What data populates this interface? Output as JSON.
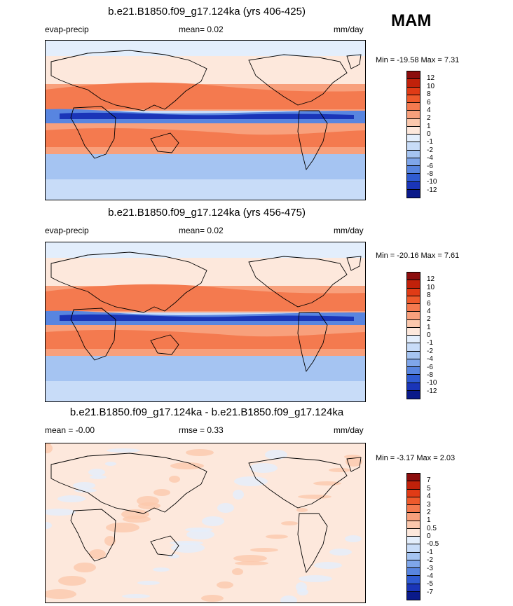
{
  "season": "MAM",
  "panels": [
    {
      "title": "b.e21.B1850.f09_g17.124ka (yrs 406-425)",
      "left_label": "evap-precip",
      "center_label": "mean=  0.02",
      "units": "mm/day",
      "minmax": "Min = -19.58 Max =  7.31",
      "levels": [
        "12",
        "10",
        "8",
        "6",
        "4",
        "2",
        "1",
        "0",
        "-1",
        "-2",
        "-4",
        "-6",
        "-8",
        "-10",
        "-12"
      ],
      "colors": [
        "#8c0d0d",
        "#c1210a",
        "#e03b16",
        "#ee5a2c",
        "#f47a4f",
        "#f8a07c",
        "#fbc8ad",
        "#fde8dc",
        "#e3eefc",
        "#c8dcf8",
        "#a5c4f2",
        "#7fa6ea",
        "#5885e0",
        "#2f5bd2",
        "#1a35b8",
        "#0a1a8a"
      ],
      "kind": "mean"
    },
    {
      "title": "b.e21.B1850.f09_g17.124ka (yrs 456-475)",
      "left_label": "evap-precip",
      "center_label": "mean=  0.02",
      "units": "mm/day",
      "minmax": "Min = -20.16 Max =  7.61",
      "levels": [
        "12",
        "10",
        "8",
        "6",
        "4",
        "2",
        "1",
        "0",
        "-1",
        "-2",
        "-4",
        "-6",
        "-8",
        "-10",
        "-12"
      ],
      "colors": [
        "#8c0d0d",
        "#c1210a",
        "#e03b16",
        "#ee5a2c",
        "#f47a4f",
        "#f8a07c",
        "#fbc8ad",
        "#fde8dc",
        "#e3eefc",
        "#c8dcf8",
        "#a5c4f2",
        "#7fa6ea",
        "#5885e0",
        "#2f5bd2",
        "#1a35b8",
        "#0a1a8a"
      ],
      "kind": "mean"
    },
    {
      "title": "b.e21.B1850.f09_g17.124ka - b.e21.B1850.f09_g17.124ka",
      "left_label": "mean =  -0.00",
      "center_label": "rmse =   0.33",
      "units": "mm/day",
      "minmax": "Min = -3.17 Max =  2.03",
      "levels": [
        "7",
        "5",
        "4",
        "3",
        "2",
        "1",
        "0.5",
        "0",
        "-0.5",
        "-1",
        "-2",
        "-3",
        "-4",
        "-5",
        "-7"
      ],
      "colors": [
        "#8c0d0d",
        "#c1210a",
        "#e03b16",
        "#ee5a2c",
        "#f47a4f",
        "#f8a07c",
        "#fbc8ad",
        "#fde8dc",
        "#e3eefc",
        "#c8dcf8",
        "#a5c4f2",
        "#7fa6ea",
        "#5885e0",
        "#2f5bd2",
        "#1a35b8",
        "#0a1a8a"
      ],
      "kind": "diff"
    }
  ]
}
